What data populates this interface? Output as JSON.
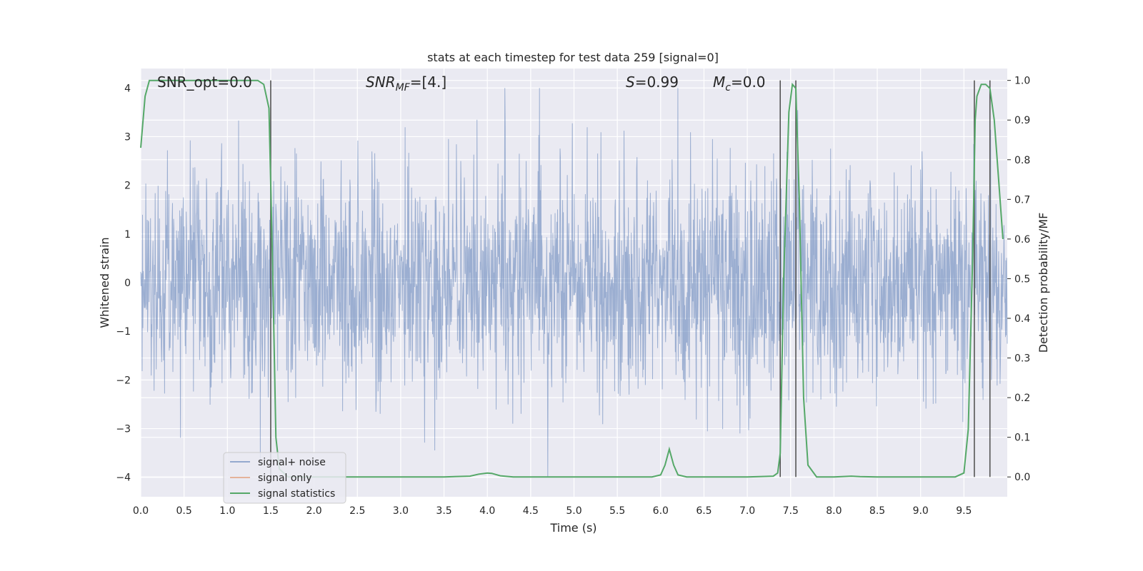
{
  "chart_data": {
    "type": "line",
    "title": "stats at each timestep for test data 259 [signal=0]",
    "xlabel": "Time (s)",
    "ylabel_left": "Whitened strain",
    "ylabel_right": "Detection probability/MF",
    "xlim": [
      0.0,
      10.0
    ],
    "ylim_left": [
      -4.4,
      4.4
    ],
    "ylim_right": [
      -0.05,
      1.03
    ],
    "x_ticks": [
      "0.0",
      "0.5",
      "1.0",
      "1.5",
      "2.0",
      "2.5",
      "3.0",
      "3.5",
      "4.0",
      "4.5",
      "5.0",
      "5.5",
      "6.0",
      "6.5",
      "7.0",
      "7.5",
      "8.0",
      "8.5",
      "9.0",
      "9.5"
    ],
    "y_ticks_left": [
      "−4",
      "−3",
      "−2",
      "−1",
      "0",
      "1",
      "2",
      "3",
      "4"
    ],
    "y_ticks_right": [
      "0.0",
      "0.1",
      "0.2",
      "0.3",
      "0.4",
      "0.5",
      "0.6",
      "0.7",
      "0.8",
      "0.9",
      "1.0"
    ],
    "grid": true,
    "legend_position": "lower-left",
    "annotations": {
      "snr_opt": "SNR_opt=0.0",
      "snr_mf_base": "SNR",
      "snr_mf_sub": "MF",
      "snr_mf_val": "=[4.]",
      "s_label": "S",
      "s_val": "=0.99",
      "mc_base": "M",
      "mc_sub": "c",
      "mc_val": "=0.0"
    },
    "vertical_lines_x": [
      1.5,
      7.38,
      7.56,
      9.62,
      9.8
    ],
    "series": [
      {
        "name": "signal+ noise",
        "color": "#4c72b0",
        "kind": "noise",
        "envelope": [
          -4.0,
          4.0
        ]
      },
      {
        "name": "signal only",
        "color": "#dd8452",
        "kind": "flat",
        "values": []
      },
      {
        "name": "signal statistics",
        "color": "#55a868",
        "kind": "line",
        "x": [
          0.0,
          0.05,
          0.1,
          0.2,
          0.4,
          0.8,
          1.2,
          1.35,
          1.42,
          1.48,
          1.52,
          1.56,
          1.6,
          1.7,
          1.8,
          2.0,
          2.5,
          3.0,
          3.5,
          3.8,
          3.9,
          4.0,
          4.05,
          4.15,
          4.3,
          4.6,
          5.0,
          5.5,
          5.9,
          6.0,
          6.05,
          6.1,
          6.15,
          6.2,
          6.3,
          6.5,
          7.0,
          7.3,
          7.35,
          7.38,
          7.42,
          7.48,
          7.52,
          7.56,
          7.6,
          7.65,
          7.7,
          7.8,
          8.0,
          8.2,
          8.3,
          8.5,
          9.0,
          9.4,
          9.5,
          9.55,
          9.6,
          9.63,
          9.65,
          9.7,
          9.75,
          9.8,
          9.85,
          9.9,
          9.95
        ],
        "values": [
          0.83,
          0.96,
          1.0,
          1.0,
          1.0,
          1.0,
          1.0,
          1.0,
          0.99,
          0.93,
          0.55,
          0.1,
          0.02,
          0.0,
          0.0,
          0.0,
          0.0,
          0.0,
          0.0,
          0.002,
          0.007,
          0.01,
          0.009,
          0.003,
          0.0,
          0.0,
          0.0,
          0.0,
          0.0,
          0.005,
          0.03,
          0.07,
          0.03,
          0.005,
          0.0,
          0.0,
          0.0,
          0.002,
          0.01,
          0.06,
          0.5,
          0.92,
          0.99,
          0.98,
          0.7,
          0.2,
          0.03,
          0.0,
          0.0,
          0.002,
          0.001,
          0.0,
          0.0,
          0.0,
          0.01,
          0.12,
          0.55,
          0.9,
          0.96,
          0.99,
          0.99,
          0.98,
          0.9,
          0.75,
          0.6
        ]
      }
    ]
  }
}
